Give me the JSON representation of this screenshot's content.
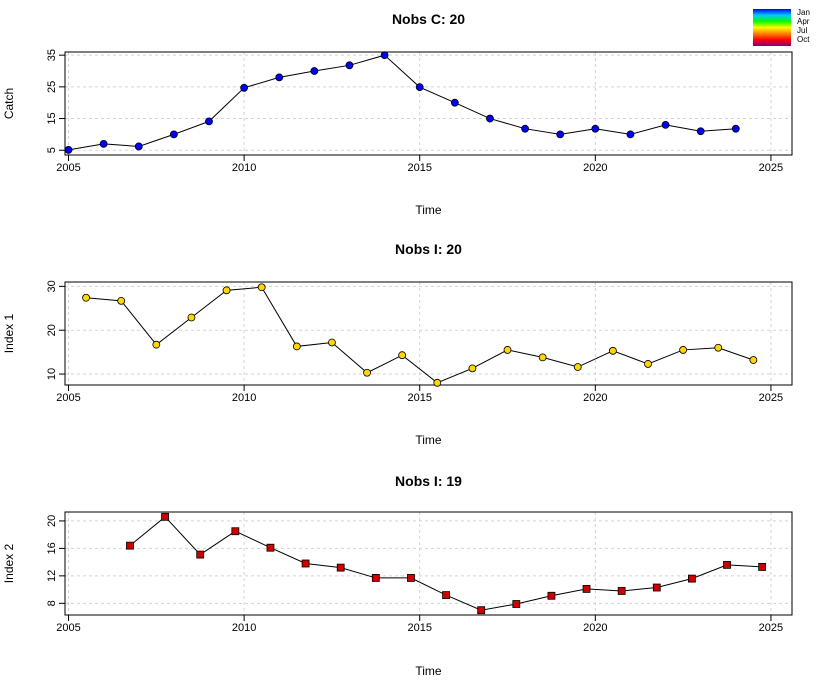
{
  "chart_data": [
    {
      "type": "line",
      "title": "Nobs C: 20",
      "xlabel": "Time",
      "ylabel": "Catch",
      "xlim": [
        2004.9,
        2025.6
      ],
      "ylim": [
        3.5,
        36
      ],
      "xticks": [
        2005,
        2010,
        2015,
        2020,
        2025
      ],
      "yticks": [
        5,
        15,
        25,
        35
      ],
      "grid": true,
      "marker": "circle",
      "x": [
        2005,
        2006,
        2007,
        2008,
        2009,
        2010,
        2011,
        2012,
        2013,
        2014,
        2015,
        2016,
        2017,
        2018,
        2019,
        2020,
        2021,
        2022,
        2023,
        2024
      ],
      "y": [
        5.1,
        7.0,
        6.2,
        10.0,
        14.1,
        24.7,
        28.0,
        30.0,
        31.8,
        35.0,
        24.9,
        20.0,
        15.0,
        11.8,
        10.0,
        11.8,
        10.0,
        13.0,
        11.0,
        11.8
      ],
      "colors": [
        "#0000ff",
        "#0000ff",
        "#0000ff",
        "#0000ff",
        "#0000ff",
        "#0000ff",
        "#0000ff",
        "#0000ff",
        "#0000ff",
        "#0000ff",
        "#0000ff",
        "#0000ff",
        "#0000ff",
        "#0000ff",
        "#0000ff",
        "#0000ff",
        "#0000ff",
        "#0000ff",
        "#0000ff",
        "#0000ff"
      ]
    },
    {
      "type": "line",
      "title": "Nobs I: 20",
      "xlabel": "Time",
      "ylabel": "Index 1",
      "xlim": [
        2004.9,
        2025.6
      ],
      "ylim": [
        7.5,
        31
      ],
      "xticks": [
        2005,
        2010,
        2015,
        2020,
        2025
      ],
      "yticks": [
        10,
        20,
        30
      ],
      "grid": true,
      "marker": "circle",
      "x": [
        2005.5,
        2006.5,
        2007.5,
        2008.5,
        2009.5,
        2010.5,
        2011.5,
        2012.5,
        2013.5,
        2014.5,
        2015.5,
        2016.5,
        2017.5,
        2018.5,
        2019.5,
        2020.5,
        2021.5,
        2022.5,
        2023.5,
        2024.5
      ],
      "y": [
        27.4,
        26.7,
        16.7,
        22.9,
        29.1,
        29.8,
        16.3,
        17.2,
        10.3,
        14.3,
        8.0,
        11.3,
        15.5,
        13.8,
        11.6,
        15.3,
        12.3,
        15.5,
        16.0,
        13.2
      ],
      "colors": [
        "#ffd700",
        "#ffd700",
        "#ffd700",
        "#ffd700",
        "#ffd700",
        "#ffd700",
        "#ffd700",
        "#ffd700",
        "#ffd700",
        "#ffd700",
        "#ffd700",
        "#ffd700",
        "#ffd700",
        "#ffd700",
        "#ffd700",
        "#ffd700",
        "#ffd700",
        "#ffd700",
        "#ffd700",
        "#ffd700"
      ]
    },
    {
      "type": "line",
      "title": "Nobs I: 19",
      "xlabel": "Time",
      "ylabel": "Index 2",
      "xlim": [
        2004.9,
        2025.6
      ],
      "ylim": [
        6.3,
        21.3
      ],
      "xticks": [
        2005,
        2010,
        2015,
        2020,
        2025
      ],
      "yticks": [
        8,
        12,
        16,
        20
      ],
      "grid": true,
      "marker": "square",
      "x": [
        2006.75,
        2007.75,
        2008.75,
        2009.75,
        2010.75,
        2011.75,
        2012.75,
        2013.75,
        2014.75,
        2015.75,
        2016.75,
        2017.75,
        2018.75,
        2019.75,
        2020.75,
        2021.75,
        2022.75,
        2023.75,
        2024.75
      ],
      "y": [
        16.4,
        20.6,
        15.1,
        18.5,
        16.1,
        13.8,
        13.2,
        11.7,
        11.7,
        9.2,
        7.0,
        7.9,
        9.1,
        10.1,
        9.8,
        10.3,
        11.6,
        13.6,
        13.3
      ],
      "colors": [
        "#cc0000",
        "#cc0000",
        "#cc0000",
        "#cc0000",
        "#cc0000",
        "#cc0000",
        "#cc0000",
        "#cc0000",
        "#cc0000",
        "#cc0000",
        "#cc0000",
        "#cc0000",
        "#cc0000",
        "#cc0000",
        "#cc0000",
        "#cc0000",
        "#cc0000",
        "#cc0000",
        "#cc0000"
      ]
    }
  ],
  "legend": {
    "labels": [
      "Jan",
      "Apr",
      "Jul",
      "Oct"
    ],
    "colors": [
      "#0000ff",
      "#00c8ff",
      "#00ff00",
      "#ffff00",
      "#ff8000",
      "#ff0000",
      "#800080"
    ]
  }
}
